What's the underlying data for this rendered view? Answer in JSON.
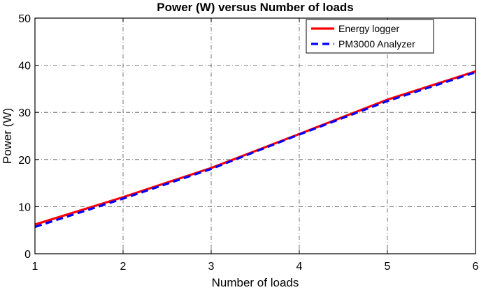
{
  "chart_data": {
    "type": "line",
    "title": "Power (W) versus Number of loads",
    "xlabel": "Number of loads",
    "ylabel": "Power (W)",
    "xlim": [
      1,
      6
    ],
    "ylim": [
      0,
      50
    ],
    "xticks": [
      1,
      2,
      3,
      4,
      5,
      6
    ],
    "yticks": [
      0,
      10,
      20,
      30,
      40,
      50
    ],
    "grid": true,
    "legend_position": "top-right",
    "x": [
      1,
      2,
      3,
      4,
      5,
      6
    ],
    "series": [
      {
        "name": "Energy logger",
        "values": [
          6.2,
          12.0,
          18.2,
          25.4,
          32.7,
          38.7
        ],
        "color": "#ff0000",
        "style": "solid"
      },
      {
        "name": "PM3000 Analyzer",
        "values": [
          5.7,
          11.7,
          18.0,
          25.3,
          32.4,
          38.5
        ],
        "color": "#0000ff",
        "style": "dashed"
      }
    ]
  }
}
